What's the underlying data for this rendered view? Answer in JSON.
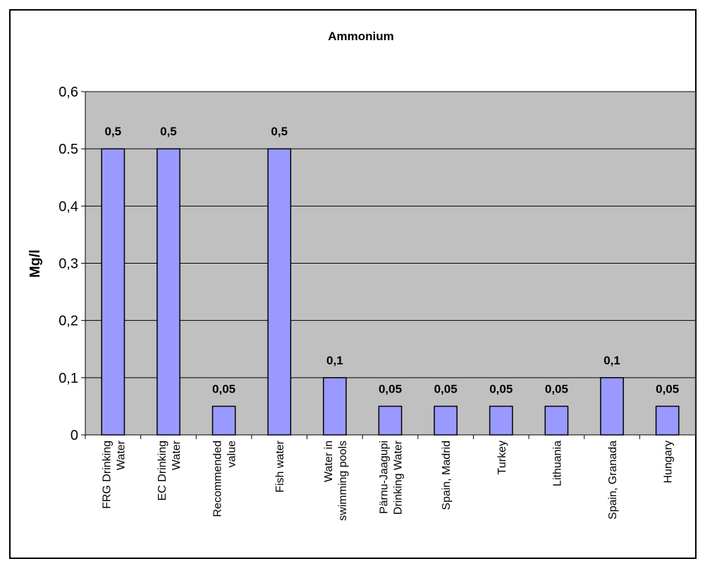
{
  "chart_data": {
    "type": "bar",
    "title": "Ammonium",
    "ylabel": "Mg/l",
    "xlabel": "",
    "ylim": [
      0,
      0.6
    ],
    "yticks": [
      0,
      0.1,
      0.2,
      0.3,
      0.4,
      0.5,
      0.6
    ],
    "ytick_labels": [
      "0",
      "0,1",
      "0,2",
      "0,3",
      "0,4",
      "0.5",
      "0,6"
    ],
    "categories": [
      [
        "FRG Drinking",
        "Water"
      ],
      [
        "EC Drinking",
        "Water"
      ],
      [
        "Recommended",
        "value"
      ],
      [
        "Fish water"
      ],
      [
        "Water in",
        "swimming pools"
      ],
      [
        "Pärnu-Jaagupi",
        "Drinking Water"
      ],
      [
        "Spain, Madrid"
      ],
      [
        "Turkey"
      ],
      [
        "Lithuania"
      ],
      [
        "Spain, Granada"
      ],
      [
        "Hungary"
      ]
    ],
    "values": [
      0.5,
      0.5,
      0.05,
      0.5,
      0.1,
      0.05,
      0.05,
      0.05,
      0.05,
      0.1,
      0.05
    ],
    "value_labels": [
      "0,5",
      "0,5",
      "0,05",
      "0,5",
      "0,1",
      "0,05",
      "0,05",
      "0,05",
      "0,05",
      "0,1",
      "0,05"
    ],
    "grid": true,
    "legend": "none",
    "colors": {
      "plot_background": "#c0c0c0",
      "bar_fill": "#9999ff",
      "bar_stroke": "#000000",
      "gridline": "#000000"
    }
  }
}
